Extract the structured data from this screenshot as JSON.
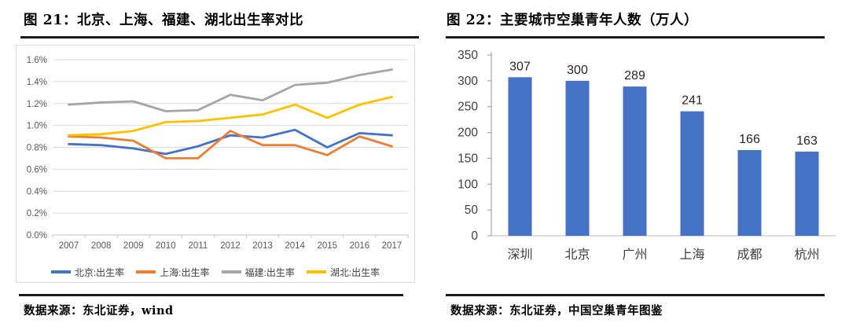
{
  "left_panel": {
    "title": "图 21：北京、上海、福建、湖北出生率对比",
    "source_note": "数据来源：东北证券，wind"
  },
  "right_panel": {
    "title": "图 22：主要城市空巢青年人数（万人）",
    "source_note": "数据来源：东北证券，中国空巢青年图鉴"
  },
  "colors": {
    "beijing_line": "#4472C4",
    "shanghai_line": "#ED7D31",
    "fujian_line": "#A5A5A5",
    "hubei_line": "#FFC000",
    "bar_fill": "#4472C4",
    "gridline": "#d9d9d9",
    "axis_text": "#595959",
    "rule": "#1a1a1a"
  },
  "chart_data": [
    {
      "type": "line",
      "title": "图 21：北京、上海、福建、湖北出生率对比",
      "x": [
        2007,
        2008,
        2009,
        2010,
        2011,
        2012,
        2013,
        2014,
        2015,
        2016,
        2017
      ],
      "series": [
        {
          "name": "北京:出生率",
          "color": "#4472C4",
          "values": [
            0.83,
            0.82,
            0.79,
            0.74,
            0.81,
            0.91,
            0.89,
            0.96,
            0.8,
            0.93,
            0.91
          ]
        },
        {
          "name": "上海:出生率",
          "color": "#ED7D31",
          "values": [
            0.9,
            0.89,
            0.86,
            0.7,
            0.7,
            0.95,
            0.82,
            0.82,
            0.73,
            0.9,
            0.81
          ]
        },
        {
          "name": "福建:出生率",
          "color": "#A5A5A5",
          "values": [
            1.19,
            1.21,
            1.22,
            1.13,
            1.14,
            1.28,
            1.23,
            1.37,
            1.39,
            1.46,
            1.51
          ]
        },
        {
          "name": "湖北:出生率",
          "color": "#FFC000",
          "values": [
            0.91,
            0.92,
            0.95,
            1.03,
            1.04,
            1.07,
            1.1,
            1.19,
            1.07,
            1.19,
            1.26
          ]
        }
      ],
      "ylim": [
        0,
        1.6
      ],
      "ytick_step": 0.2,
      "ytick_format": "percent_1dp",
      "grid": true,
      "legend_position": "bottom"
    },
    {
      "type": "bar",
      "title": "图 22：主要城市空巢青年人数（万人）",
      "categories": [
        "深圳",
        "北京",
        "广州",
        "上海",
        "成都",
        "杭州"
      ],
      "values": [
        307,
        300,
        289,
        241,
        166,
        163
      ],
      "bar_color": "#4472C4",
      "ylim": [
        0,
        350
      ],
      "ytick_step": 50,
      "grid": false,
      "data_labels": true
    }
  ]
}
